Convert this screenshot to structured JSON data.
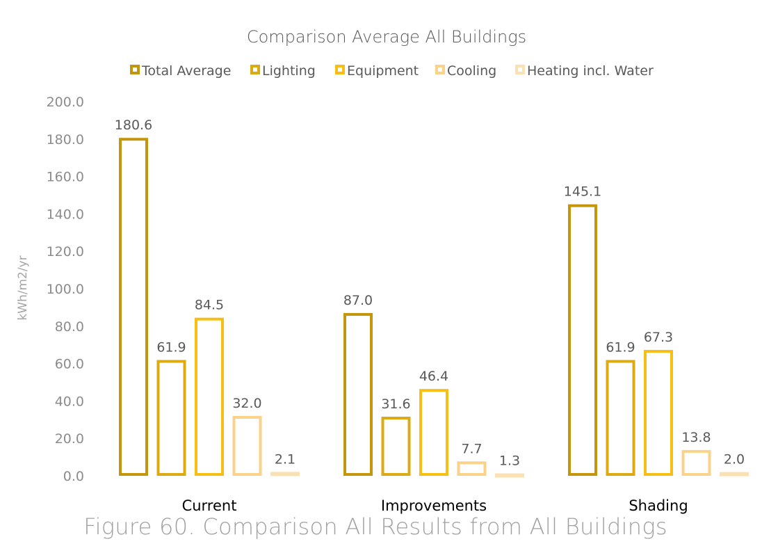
{
  "caption": "Figure 60. Comparison All Results from All Buildings",
  "chart_data": {
    "type": "bar",
    "title": "Comparison Average All Buildings",
    "xlabel": "",
    "ylabel": "kWh/m2/yr",
    "ylim": [
      0,
      200
    ],
    "yticks": [
      "0.0",
      "20.0",
      "40.0",
      "60.0",
      "80.0",
      "100.0",
      "120.0",
      "140.0",
      "160.0",
      "180.0",
      "200.0"
    ],
    "grid": false,
    "legend_position": "top",
    "categories": [
      "Current",
      "Improvements",
      "Shading"
    ],
    "series": [
      {
        "name": "Total Average",
        "color": "#c4960c",
        "values": [
          180.6,
          87.0,
          145.1
        ],
        "labels": [
          "180.6",
          "87.0",
          "145.1"
        ]
      },
      {
        "name": "Lighting",
        "color": "#dcaa12",
        "values": [
          61.9,
          31.6,
          61.9
        ],
        "labels": [
          "61.9",
          "31.6",
          "61.9"
        ]
      },
      {
        "name": "Equipment",
        "color": "#f7be16",
        "values": [
          84.5,
          46.4,
          67.3
        ],
        "labels": [
          "84.5",
          "46.4",
          "67.3"
        ]
      },
      {
        "name": "Cooling",
        "color": "#fad28a",
        "values": [
          32.0,
          7.7,
          13.8
        ],
        "labels": [
          "32.0",
          "7.7",
          "13.8"
        ]
      },
      {
        "name": "Heating incl. Water",
        "color": "#fbe0b2",
        "values": [
          2.1,
          1.3,
          2.0
        ],
        "labels": [
          "2.1",
          "1.3",
          "2.0"
        ]
      }
    ]
  }
}
